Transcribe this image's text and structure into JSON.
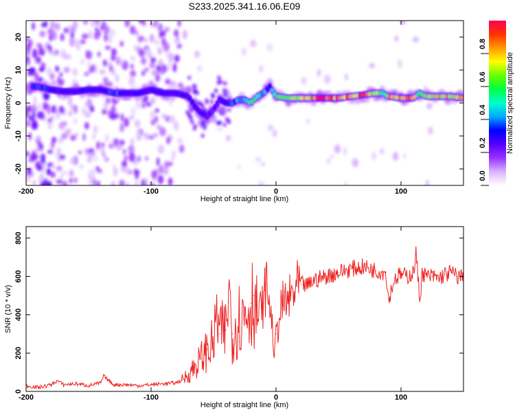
{
  "title": "S233.2025.341.16.06.E09",
  "chart_data": [
    {
      "type": "heatmap",
      "name": "spectrogram",
      "xlabel": "Height of straight line (km)",
      "ylabel": "Frequency (Hz)",
      "xlim": [
        -200,
        150
      ],
      "ylim": [
        -25,
        25
      ],
      "xticks": [
        -200,
        -100,
        0,
        100
      ],
      "xtick_labels": [
        "-200",
        "-100",
        "0",
        "100"
      ],
      "yticks": [
        -20,
        -10,
        0,
        10,
        20
      ],
      "ytick_labels": [
        "-20",
        "-10",
        "0",
        "10",
        "20"
      ],
      "ridge_x": [
        -200,
        -190,
        -180,
        -170,
        -160,
        -150,
        -140,
        -130,
        -120,
        -110,
        -100,
        -90,
        -80,
        -70,
        -65,
        -60,
        -55,
        -50,
        -45,
        -40,
        -35,
        -30,
        -25,
        -20,
        -15,
        -10,
        -5,
        0,
        10,
        20,
        30,
        40,
        50,
        60,
        70,
        80,
        85,
        90,
        100,
        110,
        115,
        120,
        130,
        140,
        150
      ],
      "ridge_y": [
        5,
        5,
        4,
        3.5,
        3.5,
        4,
        4,
        3,
        3,
        3,
        4,
        3,
        3,
        2,
        -1,
        -3,
        -4,
        -2,
        1,
        0,
        0,
        1,
        1,
        0,
        2,
        3,
        5,
        2,
        1.5,
        1.5,
        1.5,
        1.5,
        1.5,
        2,
        2.5,
        3,
        3,
        2,
        1.5,
        1.5,
        3,
        2,
        2,
        2,
        1.5
      ],
      "ridge_amplitude": [
        0.3,
        0.35,
        0.3,
        0.3,
        0.3,
        0.3,
        0.3,
        0.35,
        0.3,
        0.3,
        0.3,
        0.3,
        0.3,
        0.25,
        0.25,
        0.3,
        0.25,
        0.2,
        0.25,
        0.3,
        0.35,
        0.4,
        0.45,
        0.5,
        0.5,
        0.45,
        0.35,
        0.55,
        0.65,
        0.75,
        0.85,
        0.9,
        0.85,
        0.8,
        0.9,
        0.7,
        0.5,
        0.75,
        0.85,
        0.8,
        0.5,
        0.7,
        0.75,
        0.75,
        0.8
      ]
    },
    {
      "type": "colorbar",
      "name": "amplitude-colorbar",
      "label": "Normalized spectral amplitude",
      "range": [
        0,
        1
      ],
      "ticks": [
        0.0,
        0.2,
        0.4,
        0.6,
        0.8
      ],
      "tick_labels": [
        "0.0",
        "0.2",
        "0.4",
        "0.6",
        "0.8"
      ],
      "colors": [
        "#ffffff",
        "#d9b3ff",
        "#9933ff",
        "#5500ff",
        "#0000ff",
        "#00aaff",
        "#00ffcc",
        "#00ff44",
        "#66ff00",
        "#ffff00",
        "#ff9900",
        "#ff3300",
        "#ff0055"
      ]
    },
    {
      "type": "line",
      "name": "snr-line",
      "xlabel": "Height of straight line (km)",
      "ylabel": "SNR (10 * v/v)",
      "xlim": [
        -200,
        150
      ],
      "ylim": [
        0,
        860
      ],
      "xticks": [
        -200,
        -100,
        0,
        100
      ],
      "xtick_labels": [
        "-200",
        "-100",
        "0",
        "100"
      ],
      "yticks": [
        0,
        200,
        400,
        600,
        800
      ],
      "ytick_labels": [
        "0",
        "200",
        "400",
        "600",
        "800"
      ],
      "series": [
        {
          "name": "SNR",
          "color": "#ee2222",
          "x": [
            -200,
            -190,
            -180,
            -175,
            -170,
            -160,
            -150,
            -140,
            -138,
            -130,
            -120,
            -110,
            -100,
            -90,
            -80,
            -75,
            -70,
            -65,
            -60,
            -55,
            -50,
            -47,
            -45,
            -40,
            -38,
            -35,
            -30,
            -25,
            -20,
            -18,
            -15,
            -10,
            -8,
            -5,
            -1,
            0,
            5,
            10,
            15,
            20,
            25,
            30,
            40,
            50,
            60,
            70,
            80,
            88,
            90,
            95,
            100,
            105,
            110,
            112,
            115,
            117,
            120,
            125,
            130,
            135,
            140,
            145,
            150
          ],
          "y": [
            30,
            20,
            35,
            55,
            35,
            40,
            30,
            45,
            80,
            35,
            35,
            30,
            35,
            40,
            45,
            60,
            90,
            130,
            170,
            220,
            250,
            400,
            300,
            320,
            540,
            300,
            380,
            400,
            460,
            500,
            380,
            460,
            560,
            460,
            190,
            300,
            450,
            470,
            520,
            560,
            550,
            580,
            600,
            620,
            640,
            650,
            630,
            620,
            480,
            590,
            610,
            600,
            620,
            720,
            480,
            620,
            600,
            600,
            590,
            610,
            620,
            600,
            600
          ]
        }
      ]
    }
  ]
}
